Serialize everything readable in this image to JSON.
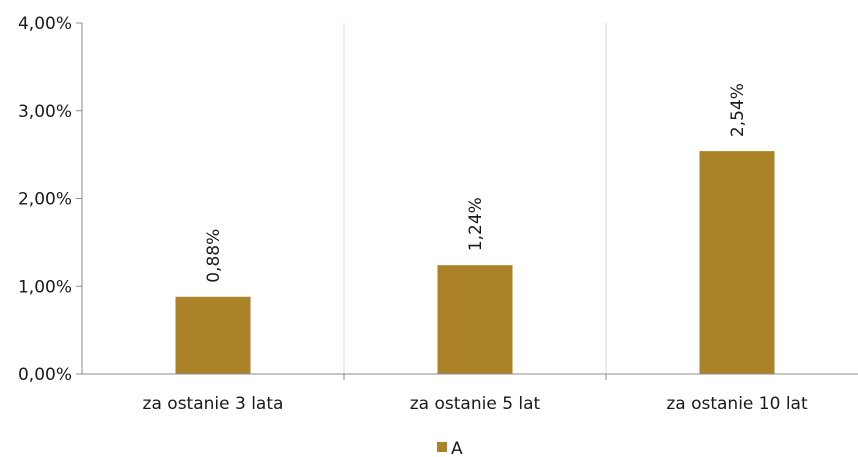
{
  "chart_data": {
    "type": "bar",
    "categories": [
      "za ostanie 3 lata",
      "za ostanie 5 lat",
      "za ostanie 10 lat"
    ],
    "series": [
      {
        "name": "A",
        "values": [
          0.88,
          1.24,
          2.54
        ],
        "color": "#ab8227"
      }
    ],
    "data_labels": [
      "0,88%",
      "1,24%",
      "2,54%"
    ],
    "y_ticks": [
      {
        "value": 0,
        "label": "0,00%"
      },
      {
        "value": 1,
        "label": "1,00%"
      },
      {
        "value": 2,
        "label": "2,00%"
      },
      {
        "value": 3,
        "label": "3,00%"
      },
      {
        "value": 4,
        "label": "4,00%"
      }
    ],
    "ylim": [
      0,
      4
    ],
    "category_separators": true,
    "legend_position": "bottom-center",
    "colors": {
      "bar": "#ab8227",
      "axis": "#8c8c8c",
      "gridline": "#d9d9d9"
    }
  }
}
